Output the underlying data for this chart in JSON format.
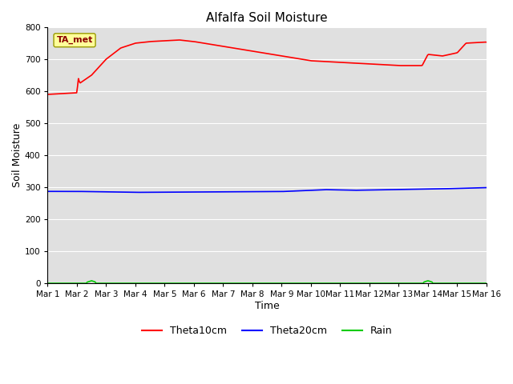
{
  "title": "Alfalfa Soil Moisture",
  "xlabel": "Time",
  "ylabel": "Soil Moisture",
  "annotation_text": "TA_met",
  "ylim": [
    0,
    800
  ],
  "yticks": [
    0,
    100,
    200,
    300,
    400,
    500,
    600,
    700,
    800
  ],
  "xtick_labels": [
    "Mar 1",
    "Mar 2",
    "Mar 3",
    "Mar 4",
    "Mar 5",
    "Mar 6",
    "Mar 7",
    "Mar 8",
    "Mar 9",
    "Mar 10",
    "Mar 11",
    "Mar 12",
    "Mar 13",
    "Mar 14",
    "Mar 15",
    "Mar 16"
  ],
  "bg_color": "#e0e0e0",
  "fig_bg_color": "#ffffff",
  "theta10_color": "#ff0000",
  "theta20_color": "#0000ff",
  "rain_color": "#00cc00",
  "legend_labels": [
    "Theta10cm",
    "Theta20cm",
    "Rain"
  ],
  "num_points": 500
}
